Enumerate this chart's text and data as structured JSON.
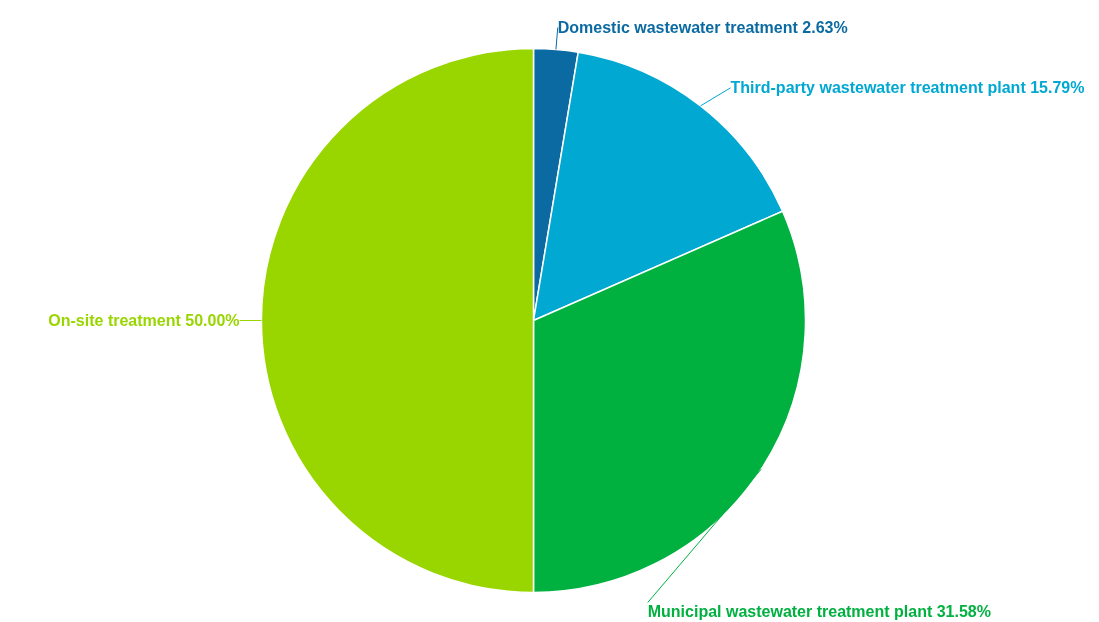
{
  "chart_data": {
    "type": "pie",
    "categories": [
      "Domestic wastewater treatment",
      "Third-party wastewater treatment plant",
      "Municipal wastewater treatment plant",
      "On-site treatment"
    ],
    "values": [
      2.63,
      15.79,
      31.58,
      50.0
    ],
    "value_labels": [
      "2.63%",
      "15.79%",
      "31.58%",
      "50.00%"
    ],
    "colors": [
      "#0b6aa2",
      "#00a8d2",
      "#00b140",
      "#99d600"
    ]
  }
}
